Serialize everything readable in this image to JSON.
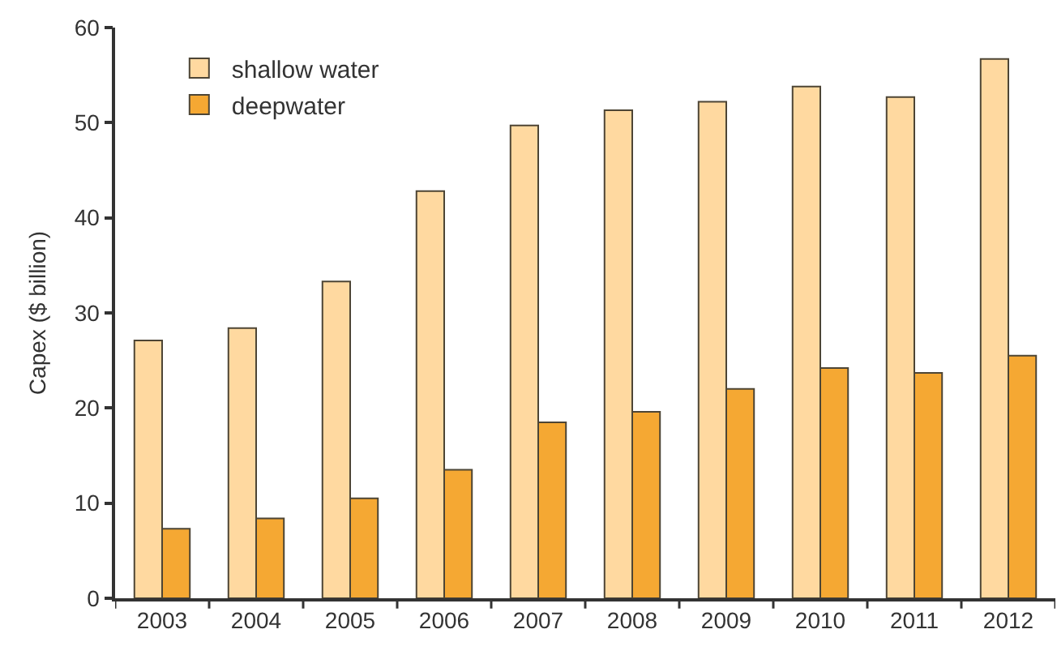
{
  "chart_data": {
    "type": "bar",
    "ylabel": "Capex ($ billion)",
    "categories": [
      "2003",
      "2004",
      "2005",
      "2006",
      "2007",
      "2008",
      "2009",
      "2010",
      "2011",
      "2012"
    ],
    "series": [
      {
        "name": "shallow water",
        "color": "#ffd9a0",
        "values": [
          27.1,
          28.4,
          33.3,
          42.8,
          49.7,
          51.3,
          52.2,
          53.8,
          52.7,
          56.7
        ]
      },
      {
        "name": "deepwater",
        "color": "#f5a833",
        "values": [
          7.3,
          8.4,
          10.5,
          13.5,
          18.5,
          19.6,
          22.0,
          24.2,
          23.7,
          25.5
        ]
      }
    ],
    "ylim": [
      0,
      60
    ],
    "yticks": [
      0,
      10,
      20,
      30,
      40,
      50,
      60
    ],
    "legend": "top left"
  }
}
